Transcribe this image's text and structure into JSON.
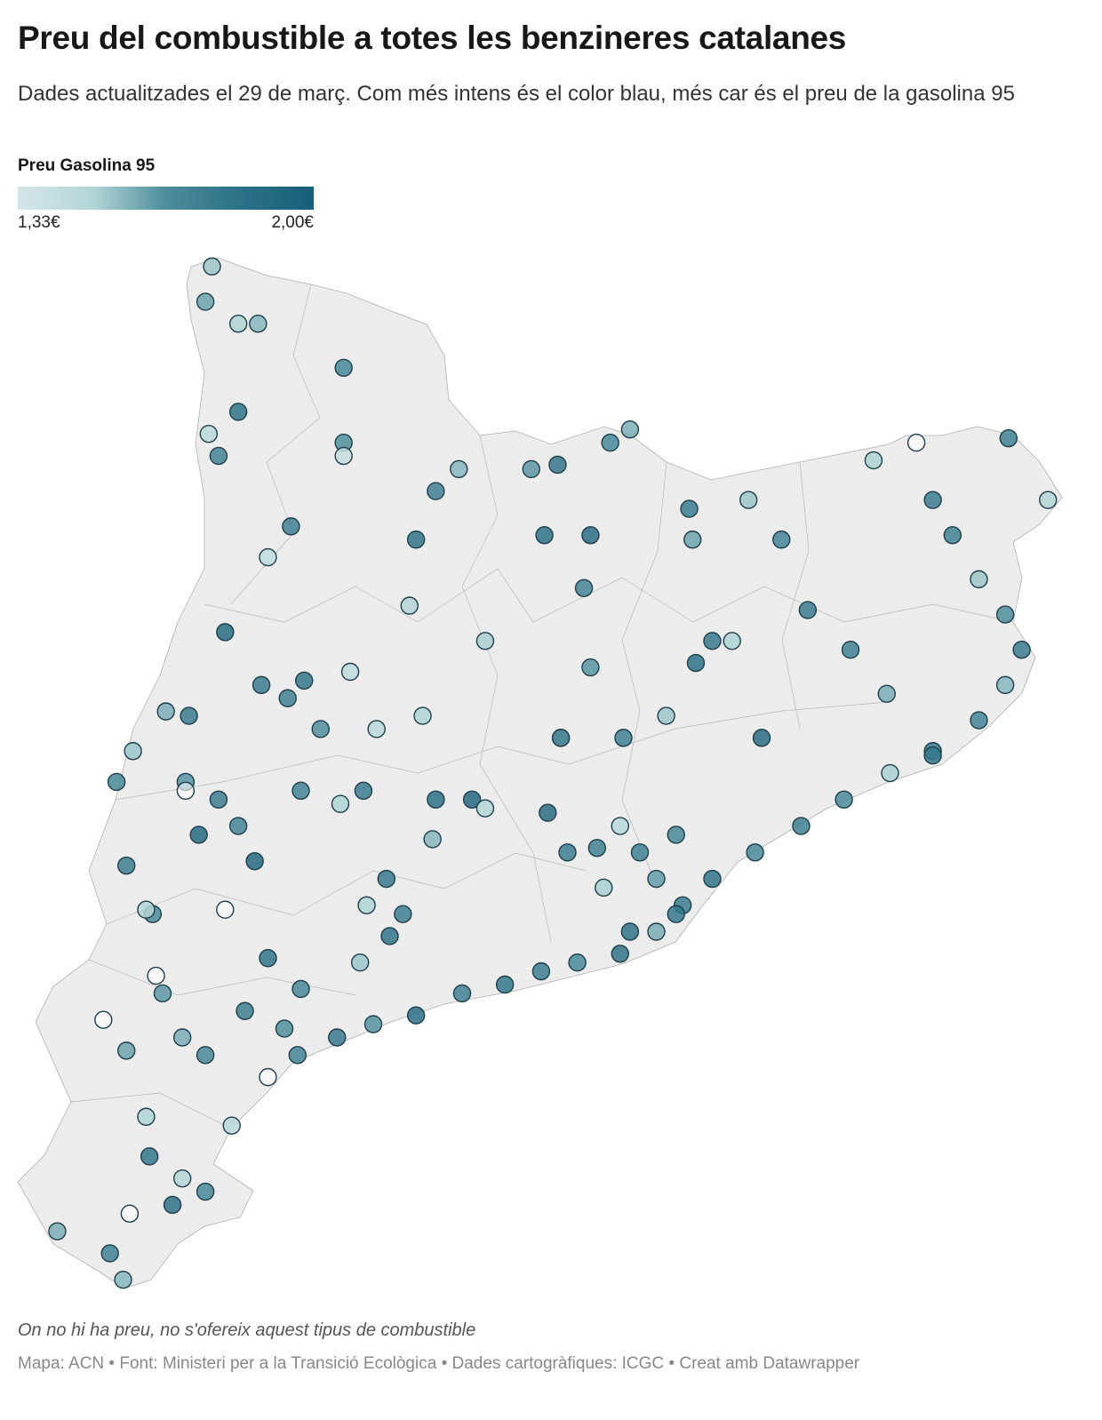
{
  "header": {
    "title": "Preu del combustible a totes les benzineres catalanes",
    "subtitle": "Dades actualitzades el 29 de març. Com més intens és el color blau, més car és el preu de la gasolina 95"
  },
  "legend": {
    "title": "Preu Gasolina 95",
    "min_label": "1,33€",
    "max_label": "2,00€",
    "min": 1.33,
    "max": 2.0,
    "colors": [
      "#d3e6e6",
      "#a9cfd1",
      "#4d8d9c",
      "#195f79"
    ],
    "no_price_color": "#ffffff"
  },
  "map": {
    "region": "Catalunya",
    "land_color": "#ececec",
    "border_color": "#b0b0b0",
    "stations": [
      [
        0.75,
        42.83,
        1.55
      ],
      [
        0.73,
        42.75,
        1.62
      ],
      [
        0.83,
        42.7,
        1.5
      ],
      [
        0.89,
        42.7,
        1.58
      ],
      [
        1.15,
        42.6,
        1.7
      ],
      [
        0.83,
        42.5,
        1.85
      ],
      [
        0.74,
        42.45,
        1.45
      ],
      [
        0.77,
        42.4,
        1.72
      ],
      [
        1.15,
        42.43,
        1.66
      ],
      [
        1.15,
        42.4,
        1.4
      ],
      [
        0.99,
        42.24,
        1.75
      ],
      [
        0.92,
        42.17,
        1.42
      ],
      [
        0.79,
        42.0,
        1.9
      ],
      [
        0.9,
        41.88,
        1.78
      ],
      [
        0.98,
        41.85,
        1.74
      ],
      [
        0.61,
        41.82,
        1.6
      ],
      [
        0.68,
        41.81,
        1.8
      ],
      [
        0.51,
        41.73,
        1.55
      ],
      [
        0.46,
        41.66,
        1.7
      ],
      [
        0.67,
        41.66,
        1.65
      ],
      [
        0.71,
        41.54,
        1.92
      ],
      [
        0.49,
        41.47,
        1.76
      ],
      [
        0.57,
        41.36,
        1.68
      ],
      [
        0.79,
        41.37,
        null
      ],
      [
        0.92,
        41.26,
        1.84
      ],
      [
        0.58,
        41.22,
        null
      ],
      [
        0.85,
        41.14,
        1.77
      ],
      [
        0.49,
        41.05,
        1.62
      ],
      [
        0.55,
        40.9,
        1.5
      ],
      [
        0.56,
        40.81,
        1.82
      ],
      [
        0.63,
        40.7,
        1.86
      ],
      [
        0.28,
        40.64,
        1.6
      ],
      [
        0.44,
        40.59,
        1.75
      ],
      [
        0.48,
        40.53,
        1.58
      ],
      [
        0.73,
        40.73,
        1.7
      ],
      [
        0.81,
        40.88,
        1.45
      ],
      [
        0.92,
        40.99,
        null
      ],
      [
        1.01,
        41.04,
        1.72
      ],
      [
        1.13,
        41.08,
        1.8
      ],
      [
        1.24,
        41.11,
        1.65
      ],
      [
        1.37,
        41.13,
        1.88
      ],
      [
        1.51,
        41.18,
        1.74
      ],
      [
        1.64,
        41.2,
        1.82
      ],
      [
        1.75,
        41.23,
        1.77
      ],
      [
        1.86,
        41.25,
        1.69
      ],
      [
        1.99,
        41.27,
        1.85
      ],
      [
        2.1,
        41.32,
        1.6
      ],
      [
        2.18,
        41.38,
        1.79
      ],
      [
        2.27,
        41.44,
        1.83
      ],
      [
        2.4,
        41.5,
        1.71
      ],
      [
        2.54,
        41.56,
        1.76
      ],
      [
        2.67,
        41.62,
        1.68
      ],
      [
        2.81,
        41.68,
        1.52
      ],
      [
        2.94,
        41.73,
        1.8
      ],
      [
        3.08,
        41.8,
        1.73
      ],
      [
        3.16,
        41.88,
        1.58
      ],
      [
        3.21,
        41.96,
        1.78
      ],
      [
        3.16,
        42.04,
        1.66
      ],
      [
        3.08,
        42.12,
        1.55
      ],
      [
        3.0,
        42.22,
        1.74
      ],
      [
        2.94,
        42.3,
        1.79
      ],
      [
        2.89,
        42.43,
        null
      ],
      [
        3.17,
        42.44,
        1.75
      ],
      [
        3.29,
        42.3,
        1.48
      ],
      [
        2.76,
        42.39,
        1.5
      ],
      [
        2.48,
        42.21,
        1.72
      ],
      [
        2.21,
        42.21,
        1.62
      ],
      [
        2.38,
        42.3,
        1.55
      ],
      [
        2.2,
        42.28,
        1.78
      ],
      [
        2.02,
        42.46,
        1.6
      ],
      [
        1.96,
        42.43,
        1.7
      ],
      [
        1.8,
        42.38,
        1.82
      ],
      [
        1.72,
        42.37,
        1.64
      ],
      [
        1.5,
        42.37,
        1.58
      ],
      [
        1.43,
        42.32,
        1.76
      ],
      [
        1.37,
        42.21,
        1.84
      ],
      [
        1.35,
        42.06,
        1.48
      ],
      [
        1.58,
        41.98,
        1.52
      ],
      [
        1.76,
        42.22,
        1.86
      ],
      [
        1.9,
        42.22,
        1.88
      ],
      [
        1.88,
        42.1,
        1.72
      ],
      [
        1.9,
        41.92,
        1.65
      ],
      [
        1.81,
        41.76,
        null
      ],
      [
        2.0,
        41.76,
        1.74
      ],
      [
        2.13,
        41.81,
        1.55
      ],
      [
        2.42,
        41.76,
        1.9
      ],
      [
        2.27,
        41.98,
        1.8
      ],
      [
        2.33,
        41.98,
        1.5
      ],
      [
        2.22,
        41.93,
        1.86
      ],
      [
        2.56,
        42.05,
        1.78
      ],
      [
        2.69,
        41.96,
        1.74
      ],
      [
        2.8,
        41.86,
        1.6
      ],
      [
        2.94,
        41.72,
        1.82
      ],
      [
        1.99,
        41.56,
        1.45
      ],
      [
        2.05,
        41.5,
        1.75
      ],
      [
        2.1,
        41.44,
        1.63
      ],
      [
        2.16,
        41.36,
        1.81
      ],
      [
        2.02,
        41.32,
        1.85
      ],
      [
        1.94,
        41.42,
        1.52
      ],
      [
        1.83,
        41.5,
        1.77
      ],
      [
        1.77,
        41.59,
        1.9
      ],
      [
        1.54,
        41.62,
        1.92
      ],
      [
        1.43,
        41.62,
        1.87
      ],
      [
        1.58,
        41.6,
        1.48
      ],
      [
        1.42,
        41.53,
        1.58
      ],
      [
        1.28,
        41.44,
        1.8
      ],
      [
        1.22,
        41.38,
        1.5
      ],
      [
        1.33,
        41.36,
        1.76
      ],
      [
        1.29,
        41.31,
        1.85
      ],
      [
        1.2,
        41.25,
        1.55
      ],
      [
        1.02,
        41.19,
        1.7
      ],
      [
        0.97,
        41.1,
        1.66
      ],
      [
        1.21,
        41.64,
        1.79
      ],
      [
        1.14,
        41.61,
        1.5
      ],
      [
        1.02,
        41.64,
        1.73
      ],
      [
        0.88,
        41.48,
        1.92
      ],
      [
        0.83,
        41.56,
        1.72
      ],
      [
        0.77,
        41.62,
        1.77
      ],
      [
        0.67,
        41.64,
        null
      ],
      [
        0.55,
        41.37,
        1.48
      ],
      [
        0.6,
        41.18,
        1.64
      ],
      [
        0.42,
        41.12,
        null
      ],
      [
        0.66,
        41.08,
        1.6
      ],
      [
        0.73,
        41.04,
        1.7
      ],
      [
        0.66,
        40.76,
        1.48
      ],
      [
        0.5,
        40.68,
        null
      ],
      [
        1.03,
        41.89,
        1.82
      ],
      [
        1.17,
        41.91,
        1.42
      ],
      [
        1.25,
        41.78,
        1.45
      ],
      [
        1.39,
        41.81,
        1.5
      ],
      [
        1.08,
        41.78,
        1.66
      ],
      [
        1.81,
        41.76,
        1.84
      ],
      [
        1.92,
        41.51,
        1.74
      ],
      [
        2.16,
        41.54,
        1.7
      ]
    ]
  },
  "footer": {
    "note": "On no hi ha preu, no s'ofereix aquest tipus de combustible",
    "source": "Mapa: ACN • Font: Ministeri per a la Transició Ecològica • Dades cartogràfiques: ICGC  • Creat amb Datawrapper"
  }
}
